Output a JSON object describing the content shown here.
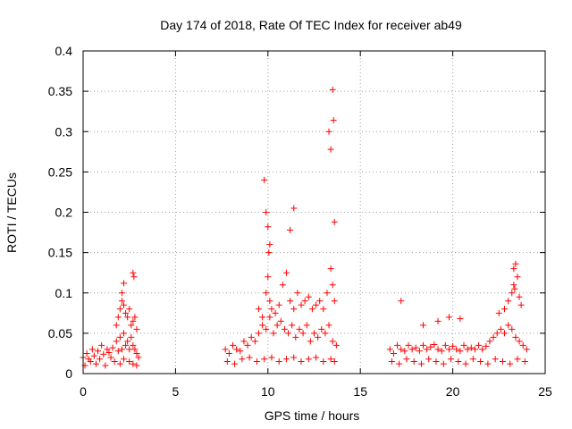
{
  "chart_data": {
    "type": "scatter",
    "title": "Day 174 of 2018, Rate Of TEC Index for receiver ab49",
    "xlabel": "GPS time / hours",
    "ylabel": "ROTI / TECUs",
    "xlim": [
      0,
      25
    ],
    "ylim": [
      0,
      0.4
    ],
    "xticks": [
      "0",
      "5",
      "10",
      "15",
      "20",
      "25"
    ],
    "yticks": [
      "0",
      "0.05",
      "0.1",
      "0.15",
      "0.2",
      "0.25",
      "0.3",
      "0.35",
      "0.4"
    ],
    "grid": true,
    "marker": "plus",
    "color": "#ff0000",
    "series": [
      {
        "x": [
          0.0,
          0.2,
          0.3,
          0.5,
          0.6,
          0.8,
          1.0,
          1.1,
          1.3,
          1.4,
          1.6,
          1.8,
          1.9,
          2.0,
          2.1,
          2.2,
          2.3,
          2.4,
          2.5,
          2.6,
          2.7,
          2.8,
          2.9,
          3.0,
          0.1,
          0.4,
          0.7,
          0.9,
          1.2,
          1.5,
          1.7,
          2.0,
          2.2,
          2.5,
          2.7,
          2.9,
          1.8,
          1.9,
          2.0,
          2.1,
          2.2,
          2.3,
          2.4,
          2.5,
          2.6,
          2.7,
          2.8,
          2.9,
          2.1,
          2.2,
          2.7,
          2.75,
          7.7,
          7.9,
          8.1,
          8.3,
          8.5,
          8.7,
          8.9,
          9.1,
          9.3,
          9.5,
          9.7,
          9.9,
          10.1,
          10.3,
          10.5,
          10.7,
          10.9,
          11.1,
          11.3,
          11.5,
          11.7,
          11.9,
          12.1,
          12.3,
          12.5,
          12.7,
          12.9,
          13.1,
          13.3,
          13.5,
          13.7,
          7.8,
          8.2,
          8.6,
          9.0,
          9.4,
          9.8,
          10.2,
          10.6,
          11.0,
          11.4,
          11.8,
          12.2,
          12.6,
          13.0,
          13.4,
          13.6,
          9.5,
          9.7,
          9.9,
          10.0,
          10.1,
          10.2,
          10.4,
          10.6,
          10.8,
          11.0,
          11.2,
          11.4,
          11.6,
          11.8,
          12.0,
          12.2,
          12.4,
          12.6,
          12.8,
          13.0,
          13.2,
          13.4,
          13.5,
          13.6,
          9.8,
          9.9,
          10.0,
          10.05,
          10.1,
          11.2,
          11.4,
          13.3,
          13.4,
          13.5,
          13.6,
          13.55,
          16.6,
          16.8,
          17.0,
          17.2,
          17.4,
          17.6,
          17.8,
          18.0,
          18.2,
          18.4,
          18.6,
          18.8,
          19.0,
          19.2,
          19.4,
          19.6,
          19.8,
          20.0,
          20.2,
          20.4,
          20.6,
          20.8,
          21.0,
          21.2,
          21.4,
          21.6,
          21.8,
          22.0,
          22.2,
          22.4,
          22.6,
          22.8,
          23.0,
          23.2,
          23.4,
          23.6,
          23.8,
          24.0,
          16.7,
          17.1,
          17.5,
          17.9,
          18.3,
          18.7,
          19.1,
          19.5,
          19.9,
          20.3,
          20.7,
          21.1,
          21.5,
          21.9,
          22.3,
          22.7,
          23.1,
          23.5,
          23.9,
          17.2,
          18.4,
          19.2,
          19.8,
          20.4,
          22.5,
          22.8,
          23.0,
          23.2,
          23.3,
          23.4,
          23.5,
          23.6,
          23.7,
          23.3,
          23.35
        ],
        "y": [
          0.02,
          0.025,
          0.018,
          0.03,
          0.022,
          0.028,
          0.035,
          0.024,
          0.03,
          0.026,
          0.032,
          0.04,
          0.028,
          0.045,
          0.03,
          0.05,
          0.035,
          0.04,
          0.03,
          0.045,
          0.035,
          0.03,
          0.025,
          0.02,
          0.01,
          0.015,
          0.012,
          0.018,
          0.01,
          0.02,
          0.015,
          0.012,
          0.018,
          0.015,
          0.012,
          0.01,
          0.06,
          0.07,
          0.08,
          0.09,
          0.085,
          0.075,
          0.07,
          0.08,
          0.06,
          0.065,
          0.07,
          0.055,
          0.1,
          0.112,
          0.125,
          0.12,
          0.03,
          0.025,
          0.035,
          0.03,
          0.028,
          0.04,
          0.035,
          0.045,
          0.04,
          0.05,
          0.06,
          0.055,
          0.07,
          0.05,
          0.06,
          0.065,
          0.055,
          0.05,
          0.06,
          0.045,
          0.055,
          0.05,
          0.06,
          0.04,
          0.05,
          0.045,
          0.055,
          0.05,
          0.06,
          0.04,
          0.035,
          0.015,
          0.012,
          0.018,
          0.02,
          0.015,
          0.018,
          0.02,
          0.015,
          0.018,
          0.02,
          0.015,
          0.018,
          0.02,
          0.015,
          0.018,
          0.015,
          0.08,
          0.07,
          0.1,
          0.12,
          0.09,
          0.08,
          0.075,
          0.085,
          0.11,
          0.125,
          0.09,
          0.08,
          0.1,
          0.085,
          0.09,
          0.095,
          0.08,
          0.085,
          0.09,
          0.08,
          0.1,
          0.13,
          0.11,
          0.09,
          0.24,
          0.2,
          0.182,
          0.15,
          0.16,
          0.178,
          0.205,
          0.3,
          0.278,
          0.352,
          0.188,
          0.314,
          0.03,
          0.025,
          0.035,
          0.03,
          0.028,
          0.035,
          0.03,
          0.032,
          0.028,
          0.035,
          0.03,
          0.033,
          0.036,
          0.03,
          0.028,
          0.035,
          0.03,
          0.034,
          0.03,
          0.028,
          0.035,
          0.03,
          0.032,
          0.03,
          0.035,
          0.03,
          0.034,
          0.04,
          0.045,
          0.05,
          0.055,
          0.05,
          0.06,
          0.055,
          0.045,
          0.04,
          0.035,
          0.03,
          0.015,
          0.012,
          0.018,
          0.015,
          0.012,
          0.018,
          0.015,
          0.012,
          0.018,
          0.015,
          0.012,
          0.018,
          0.015,
          0.012,
          0.018,
          0.015,
          0.012,
          0.018,
          0.015,
          0.09,
          0.06,
          0.065,
          0.07,
          0.068,
          0.075,
          0.08,
          0.09,
          0.1,
          0.11,
          0.136,
          0.12,
          0.095,
          0.085,
          0.13,
          0.105
        ]
      }
    ]
  }
}
